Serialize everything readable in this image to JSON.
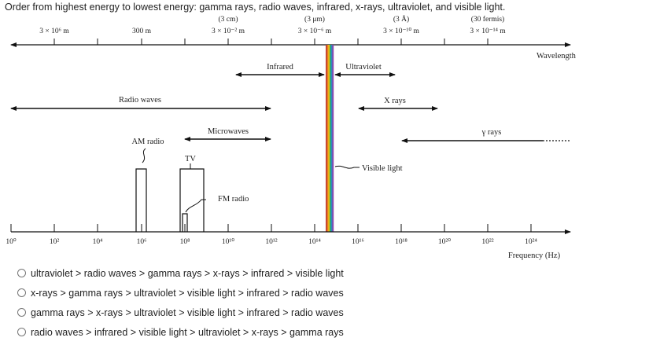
{
  "question": "Order from highest energy to lowest energy: gamma rays, radio waves, infrared, x-rays, ultraviolet, and visible light.",
  "wavelength_labels": [
    {
      "top": "",
      "main": "3 × 10⁶ m"
    },
    {
      "top": "",
      "main": "300 m"
    },
    {
      "top": "(3 cm)",
      "main": "3 × 10⁻² m"
    },
    {
      "top": "(3 μm)",
      "main": "3 × 10⁻⁶ m"
    },
    {
      "top": "(3 Å)",
      "main": "3 × 10⁻¹⁰ m"
    },
    {
      "top": "(30 fermis)",
      "main": "3 × 10⁻¹⁴ m"
    }
  ],
  "wavelength_axis_title": "Wavelength",
  "frequency_ticks": [
    "10⁰",
    "10²",
    "10⁴",
    "10⁶",
    "10⁸",
    "10¹⁰",
    "10¹²",
    "10¹⁴",
    "10¹⁶",
    "10¹⁸",
    "10²⁰",
    "10²²",
    "10²⁴"
  ],
  "frequency_axis_title": "Frequency (Hz)",
  "bands": {
    "infrared": "Infrared",
    "ultraviolet": "Ultraviolet",
    "radio": "Radio waves",
    "xrays": "X rays",
    "microwaves": "Microwaves",
    "gamma": "γ rays",
    "am": "AM radio",
    "tv": "TV",
    "fm": "FM radio",
    "visible": "Visible light"
  },
  "visible_colors": [
    "#c0392b",
    "#e67e22",
    "#f1c40f",
    "#27ae60",
    "#2e86c1",
    "#8e44ad"
  ],
  "options": [
    "ultraviolet > radio waves > gamma rays > x-rays > infrared > visible light",
    "x-rays > gamma rays > ultraviolet > visible light > infrared > radio waves",
    "gamma rays > x-rays > ultraviolet > visible light > infrared > radio waves",
    "radio waves > infrared > visible light > ultraviolet > x-rays > gamma rays"
  ]
}
